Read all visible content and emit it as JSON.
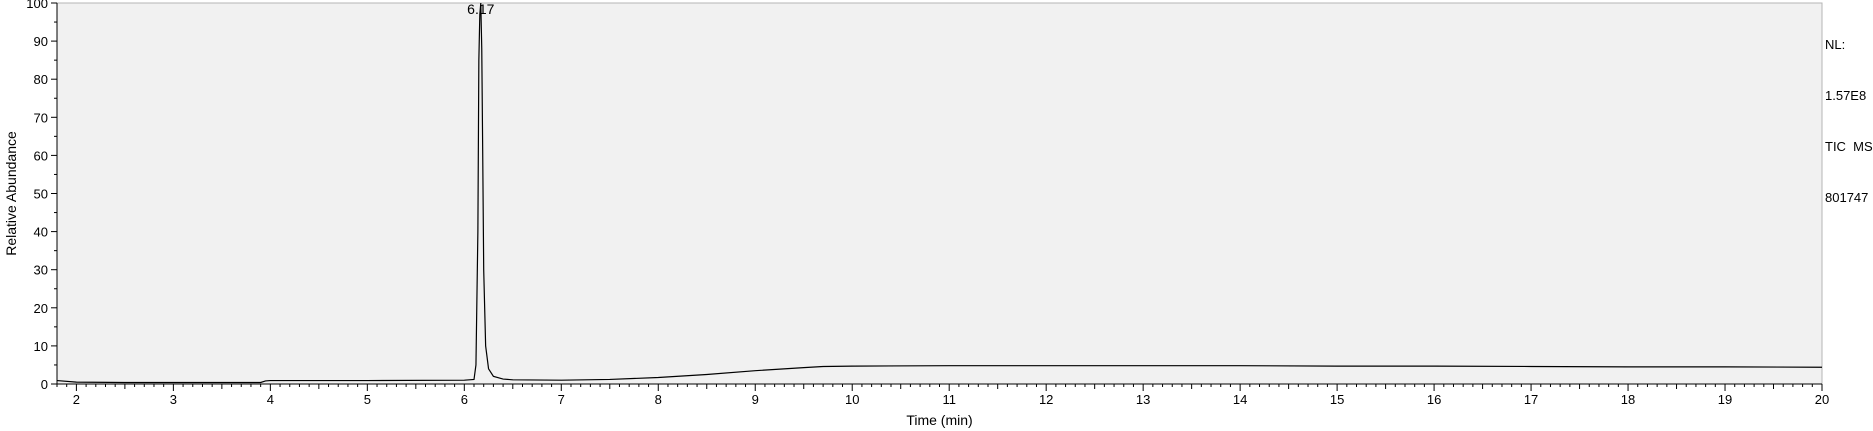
{
  "colors": {
    "plot_background": "#f1f1f1",
    "trace": "#000000",
    "axis": "#000000"
  },
  "info": {
    "nl_label": "NL:",
    "nl_value": "1.57E8",
    "scan_filter": "TIC  MS",
    "sample": "801747"
  },
  "chart_data": {
    "type": "line",
    "title": "",
    "xlabel": "Time (min)",
    "ylabel": "Relative Abundance",
    "xlim": [
      1.8,
      20
    ],
    "ylim": [
      0,
      100
    ],
    "x_ticks": [
      2,
      3,
      4,
      5,
      6,
      7,
      8,
      9,
      10,
      11,
      12,
      13,
      14,
      15,
      16,
      17,
      18,
      19,
      20
    ],
    "x_tick_labels": [
      "2",
      "3",
      "4",
      "5",
      "6",
      "7",
      "8",
      "9",
      "10",
      "11",
      "12",
      "13",
      "14",
      "15",
      "16",
      "17",
      "18",
      "19",
      "20"
    ],
    "y_ticks": [
      0,
      10,
      20,
      30,
      40,
      50,
      60,
      70,
      80,
      90,
      100
    ],
    "y_tick_labels": [
      "0",
      "10",
      "20",
      "30",
      "40",
      "50",
      "60",
      "70",
      "80",
      "90",
      "100"
    ],
    "grid": false,
    "legend": "none",
    "annotations": [
      {
        "text": "6.17",
        "x": 6.17,
        "y": 100
      }
    ],
    "series": [
      {
        "x": [
          1.8,
          2.0,
          2.5,
          3.0,
          3.5,
          3.9,
          3.95,
          4.0,
          5.0,
          6.0,
          6.1,
          6.12,
          6.14,
          6.15,
          6.16,
          6.17,
          6.18,
          6.19,
          6.2,
          6.22,
          6.25,
          6.3,
          6.4,
          6.5,
          7.0,
          7.5,
          8.0,
          8.5,
          9.0,
          9.5,
          9.7,
          10.0,
          11.0,
          12.0,
          13.0,
          14.0,
          15.0,
          16.0,
          17.0,
          18.0,
          19.0,
          20.0
        ],
        "y": [
          0.9,
          0.5,
          0.4,
          0.4,
          0.4,
          0.4,
          0.8,
          0.9,
          0.9,
          1.0,
          1.2,
          5,
          40,
          85,
          97,
          100,
          88,
          60,
          30,
          10,
          4,
          2,
          1.3,
          1.1,
          1.0,
          1.2,
          1.7,
          2.5,
          3.5,
          4.3,
          4.6,
          4.7,
          4.8,
          4.8,
          4.8,
          4.8,
          4.7,
          4.7,
          4.6,
          4.5,
          4.5,
          4.4
        ]
      }
    ]
  }
}
